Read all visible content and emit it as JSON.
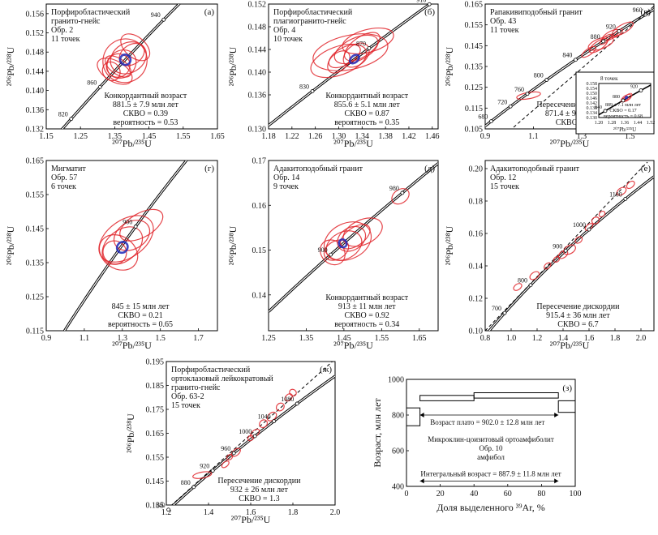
{
  "figure_axis": {
    "y_pb206_u238": "²⁰⁶Pb/²³⁸U",
    "x_pb207_u235": "²⁰⁷Pb/²³⁵U"
  },
  "chart_data": [
    {
      "id": "a",
      "type": "scatter",
      "letter": "(а)",
      "title_lines": [
        "Порфиробластический",
        "гранито-гнейс",
        "Обр. 2",
        "11 точек"
      ],
      "result_lines": [
        "Конкордантный возраст",
        "881.5 ± 7.9 млн лет",
        "СКВО = 0.39",
        "вероятность = 0.53"
      ],
      "xlim": [
        1.15,
        1.65
      ],
      "ylim": [
        0.132,
        0.158
      ],
      "xticks": [
        "1.15",
        "1.25",
        "1.35",
        "1.45",
        "1.55",
        "1.65"
      ],
      "yticks": [
        "0.132",
        "0.136",
        "0.140",
        "0.144",
        "0.148",
        "0.152",
        "0.156"
      ],
      "concordia_labels": [
        {
          "age": "820",
          "x": 1.223,
          "y": 0.1356
        },
        {
          "age": "860",
          "x": 1.307,
          "y": 0.1428
        },
        {
          "age": "940",
          "x": 1.493,
          "y": 0.157
        }
      ],
      "ellipses": [
        {
          "x": 1.38,
          "y": 0.1462,
          "rx": 0.13,
          "ry": 0.009,
          "rot": 35
        },
        {
          "x": 1.37,
          "y": 0.1455,
          "rx": 0.09,
          "ry": 0.0055,
          "rot": 40
        },
        {
          "x": 1.36,
          "y": 0.1452,
          "rx": 0.07,
          "ry": 0.0048,
          "rot": 35
        },
        {
          "x": 1.39,
          "y": 0.1468,
          "rx": 0.11,
          "ry": 0.0062,
          "rot": 30
        },
        {
          "x": 1.35,
          "y": 0.144,
          "rx": 0.06,
          "ry": 0.008,
          "rot": 60
        },
        {
          "x": 1.36,
          "y": 0.145,
          "rx": 0.045,
          "ry": 0.0062,
          "rot": 55
        },
        {
          "x": 1.4,
          "y": 0.1475,
          "rx": 0.08,
          "ry": 0.004,
          "rot": 35
        },
        {
          "x": 1.34,
          "y": 0.144,
          "rx": 0.05,
          "ry": 0.004,
          "rot": 30
        },
        {
          "x": 1.41,
          "y": 0.149,
          "rx": 0.06,
          "ry": 0.007,
          "rot": 50
        }
      ],
      "concordant": {
        "x": 1.381,
        "y": 0.1464,
        "rx": 0.03,
        "ry": 0.0022,
        "rot": 45
      },
      "line": {
        "kind": "concordia"
      }
    },
    {
      "id": "b",
      "type": "scatter",
      "letter": "(б)",
      "title_lines": [
        "Порфиробластический",
        "плагиогранито-гнейс",
        "Обр. 4",
        "10 точек"
      ],
      "result_lines": [
        "Конкордантный возраст",
        "855.6 ± 5.1 млн лет",
        "СКВО = 0.87",
        "вероятность = 0.35"
      ],
      "xlim": [
        1.18,
        1.47
      ],
      "ylim": [
        0.13,
        0.152
      ],
      "xticks": [
        "1.18",
        "1.22",
        "1.26",
        "1.30",
        "1.34",
        "1.38",
        "1.42",
        "1.46"
      ],
      "yticks": [
        "0.130",
        "0.136",
        "0.140",
        "0.144",
        "0.148",
        "0.152"
      ],
      "concordia_labels": [
        {
          "age": "830",
          "x": 1.255,
          "y": 0.137
        },
        {
          "age": "870",
          "x": 1.352,
          "y": 0.1448
        },
        {
          "age": "910",
          "x": 1.455,
          "y": 0.1515
        }
      ],
      "ellipses": [
        {
          "x": 1.32,
          "y": 0.1435,
          "rx": 0.13,
          "ry": 0.006,
          "rot": 12
        },
        {
          "x": 1.3,
          "y": 0.142,
          "rx": 0.1,
          "ry": 0.005,
          "rot": 20
        },
        {
          "x": 1.33,
          "y": 0.144,
          "rx": 0.08,
          "ry": 0.004,
          "rot": 25
        },
        {
          "x": 1.31,
          "y": 0.1428,
          "rx": 0.06,
          "ry": 0.003,
          "rot": 30
        },
        {
          "x": 1.34,
          "y": 0.1445,
          "rx": 0.07,
          "ry": 0.0034,
          "rot": 35
        },
        {
          "x": 1.33,
          "y": 0.143,
          "rx": 0.05,
          "ry": 0.0035,
          "rot": 40
        },
        {
          "x": 1.3,
          "y": 0.1418,
          "rx": 0.045,
          "ry": 0.003,
          "rot": 45
        },
        {
          "x": 1.35,
          "y": 0.1455,
          "rx": 0.09,
          "ry": 0.004,
          "rot": 15
        }
      ],
      "concordant": {
        "x": 1.327,
        "y": 0.1423,
        "rx": 0.018,
        "ry": 0.0012,
        "rot": 40
      },
      "line": {
        "kind": "concordia"
      }
    },
    {
      "id": "v",
      "type": "scatter",
      "letter": "(в)",
      "title_lines": [
        "Рапакивиподобный гранит",
        "Обр. 43",
        "11 точек"
      ],
      "result_lines": [
        "Пересечение дискордии",
        "871.4 ± 9.7 млн лет",
        "СКВО = 0.19"
      ],
      "xlim": [
        0.9,
        1.6
      ],
      "ylim": [
        0.105,
        0.165
      ],
      "xticks": [
        "0.9",
        "1.1",
        "1.3",
        "1.5"
      ],
      "yticks": [
        "0.105",
        "0.115",
        "0.125",
        "0.135",
        "0.145",
        "0.155",
        "0.165"
      ],
      "concordia_labels": [
        {
          "age": "680",
          "x": 0.925,
          "y": 0.111
        },
        {
          "age": "720",
          "x": 1.005,
          "y": 0.118
        },
        {
          "age": "760",
          "x": 1.075,
          "y": 0.125
        },
        {
          "age": "800",
          "x": 1.155,
          "y": 0.132
        },
        {
          "age": "840",
          "x": 1.275,
          "y": 0.142
        },
        {
          "age": "880",
          "x": 1.39,
          "y": 0.146
        },
        {
          "age": "920",
          "x": 1.455,
          "y": 0.1545
        },
        {
          "age": "960",
          "x": 1.565,
          "y": 0.1625
        }
      ],
      "ellipses": [
        {
          "x": 1.37,
          "y": 0.145,
          "rx": 0.09,
          "ry": 0.004,
          "rot": 35
        },
        {
          "x": 1.42,
          "y": 0.15,
          "rx": 0.08,
          "ry": 0.0035,
          "rot": 30
        },
        {
          "x": 1.47,
          "y": 0.153,
          "rx": 0.1,
          "ry": 0.004,
          "rot": 30
        },
        {
          "x": 1.33,
          "y": 0.142,
          "rx": 0.07,
          "ry": 0.003,
          "rot": 35
        },
        {
          "x": 1.4,
          "y": 0.148,
          "rx": 0.06,
          "ry": 0.0025,
          "rot": 40
        },
        {
          "x": 1.45,
          "y": 0.151,
          "rx": 0.05,
          "ry": 0.0022,
          "rot": 40
        },
        {
          "x": 1.38,
          "y": 0.146,
          "rx": 0.11,
          "ry": 0.005,
          "rot": 20
        },
        {
          "x": 1.08,
          "y": 0.121,
          "rx": 0.1,
          "ry": 0.003,
          "rot": 10
        }
      ],
      "line": {
        "kind": "discordia",
        "dashed": true,
        "from": [
          1.0,
          0.104
        ],
        "to": [
          1.62,
          0.166
        ]
      },
      "inset": {
        "title_lines": [
          "8 точек"
        ],
        "result_lines": [
          "889 ± 7.1 млн лет",
          "СКВО = 0.17",
          "вероятность = 0.68"
        ],
        "xlim": [
          1.2,
          1.52
        ],
        "ylim": [
          0.13,
          0.158
        ],
        "xticks": [
          "1.20",
          "1.28",
          "1.36",
          "1.44",
          "1.52"
        ],
        "yticks": [
          "0.130",
          "0.134",
          "0.138",
          "0.142",
          "0.146",
          "0.150",
          "0.154",
          "0.158"
        ],
        "xlabel": "²⁰⁷Pb/²³⁵U",
        "concordia_labels": [
          {
            "age": "840",
            "x": 1.24,
            "y": 0.139
          },
          {
            "age": "880",
            "x": 1.35,
            "y": 0.148
          },
          {
            "age": "920",
            "x": 1.46,
            "y": 0.154
          }
        ],
        "ellipses": [
          {
            "x": 1.37,
            "y": 0.146,
            "rx": 0.07,
            "ry": 0.0045,
            "rot": 30
          },
          {
            "x": 1.36,
            "y": 0.145,
            "rx": 0.05,
            "ry": 0.003,
            "rot": 35
          },
          {
            "x": 1.38,
            "y": 0.147,
            "rx": 0.06,
            "ry": 0.0035,
            "rot": 40
          }
        ],
        "concordant": {
          "x": 1.37,
          "y": 0.1465,
          "rx": 0.015,
          "ry": 0.0012,
          "rot": 40
        }
      }
    },
    {
      "id": "g",
      "type": "scatter",
      "letter": "(г)",
      "title_lines": [
        "Мигматит",
        "Обр. 57",
        "6 точек"
      ],
      "result_lines": [
        "845 ± 15 млн лет",
        "СКВО = 0.21",
        "вероятность = 0.65"
      ],
      "xlim": [
        0.9,
        1.8
      ],
      "ylim": [
        0.115,
        0.165
      ],
      "xticks": [
        "0.9",
        "1.1",
        "1.3",
        "1.5",
        "1.7"
      ],
      "yticks": [
        "0.115",
        "0.125",
        "0.135",
        "0.145",
        "0.155",
        "0.165"
      ],
      "concordia_labels": [
        {
          "age": "900",
          "x": 1.37,
          "y": 0.151
        }
      ],
      "ellipses": [
        {
          "x": 1.32,
          "y": 0.142,
          "rx": 0.32,
          "ry": 0.011,
          "rot": 35
        },
        {
          "x": 1.3,
          "y": 0.14,
          "rx": 0.24,
          "ry": 0.009,
          "rot": 40
        },
        {
          "x": 1.35,
          "y": 0.143,
          "rx": 0.2,
          "ry": 0.008,
          "rot": 30
        },
        {
          "x": 1.28,
          "y": 0.138,
          "rx": 0.17,
          "ry": 0.012,
          "rot": 55
        },
        {
          "x": 1.26,
          "y": 0.138,
          "rx": 0.12,
          "ry": 0.007,
          "rot": 50
        },
        {
          "x": 1.4,
          "y": 0.146,
          "rx": 0.25,
          "ry": 0.007,
          "rot": 30
        }
      ],
      "concordant": {
        "x": 1.3,
        "y": 0.1395,
        "rx": 0.06,
        "ry": 0.003,
        "rot": 50
      },
      "line": {
        "kind": "concordia"
      }
    },
    {
      "id": "d",
      "type": "scatter",
      "letter": "(д)",
      "title_lines": [
        "Адакитоподобный гранит",
        "Обр. 14",
        "9 точек"
      ],
      "result_lines": [
        "Конкордантный возраст",
        "913 ± 11 млн лет",
        "СКВО = 0.92",
        "вероятность = 0.34"
      ],
      "xlim": [
        1.25,
        1.7
      ],
      "ylim": [
        0.132,
        0.17
      ],
      "xticks": [
        "1.25",
        "1.35",
        "1.45",
        "1.55",
        "1.65"
      ],
      "yticks": [
        "0.14",
        "0.15",
        "0.16",
        "0.17"
      ],
      "concordia_labels": [
        {
          "age": "900",
          "x": 1.415,
          "y": 0.1505
        },
        {
          "age": "980",
          "x": 1.605,
          "y": 0.164
        }
      ],
      "ellipses": [
        {
          "x": 1.46,
          "y": 0.152,
          "rx": 0.13,
          "ry": 0.008,
          "rot": 25
        },
        {
          "x": 1.45,
          "y": 0.151,
          "rx": 0.1,
          "ry": 0.006,
          "rot": 28
        },
        {
          "x": 1.47,
          "y": 0.1525,
          "rx": 0.08,
          "ry": 0.005,
          "rot": 32
        },
        {
          "x": 1.43,
          "y": 0.15,
          "rx": 0.07,
          "ry": 0.004,
          "rot": 30
        },
        {
          "x": 1.5,
          "y": 0.154,
          "rx": 0.11,
          "ry": 0.0055,
          "rot": 25
        },
        {
          "x": 1.42,
          "y": 0.1495,
          "rx": 0.06,
          "ry": 0.006,
          "rot": 45
        },
        {
          "x": 1.48,
          "y": 0.153,
          "rx": 0.09,
          "ry": 0.004,
          "rot": 35
        },
        {
          "x": 1.6,
          "y": 0.162,
          "rx": 0.05,
          "ry": 0.003,
          "rot": 35
        }
      ],
      "concordant": {
        "x": 1.447,
        "y": 0.1515,
        "rx": 0.02,
        "ry": 0.0018,
        "rot": 35
      },
      "line": {
        "kind": "concordia"
      }
    },
    {
      "id": "e",
      "type": "scatter",
      "letter": "(е)",
      "title_lines": [
        "Адакитоподобный гранит",
        "Обр. 12",
        "15 точек"
      ],
      "result_lines": [
        "Пересечение дискордии",
        "915.4 ± 36 млн лет",
        "СКВО = 6.7"
      ],
      "xlim": [
        0.8,
        2.1
      ],
      "ylim": [
        0.1,
        0.205
      ],
      "xticks": [
        "0.8",
        "1.0",
        "1.2",
        "1.4",
        "1.6",
        "1.8",
        "2.0"
      ],
      "yticks": [
        "0.10",
        "0.12",
        "0.14",
        "0.16",
        "0.18",
        "0.20"
      ],
      "concordia_labels": [
        {
          "age": "700",
          "x": 0.95,
          "y": 0.113
        },
        {
          "age": "800",
          "x": 1.15,
          "y": 0.131
        },
        {
          "age": "900",
          "x": 1.42,
          "y": 0.149
        },
        {
          "age": "1000",
          "x": 1.6,
          "y": 0.168
        },
        {
          "age": "1100",
          "x": 1.88,
          "y": 0.186
        }
      ],
      "ellipses": [
        {
          "x": 1.05,
          "y": 0.127,
          "rx": 0.07,
          "ry": 0.0035,
          "rot": 35
        },
        {
          "x": 1.18,
          "y": 0.134,
          "rx": 0.08,
          "ry": 0.004,
          "rot": 35
        },
        {
          "x": 1.28,
          "y": 0.14,
          "rx": 0.06,
          "ry": 0.003,
          "rot": 40
        },
        {
          "x": 1.4,
          "y": 0.147,
          "rx": 0.08,
          "ry": 0.004,
          "rot": 35
        },
        {
          "x": 1.45,
          "y": 0.15,
          "rx": 0.1,
          "ry": 0.005,
          "rot": 30
        },
        {
          "x": 1.52,
          "y": 0.156,
          "rx": 0.06,
          "ry": 0.0035,
          "rot": 40
        },
        {
          "x": 1.6,
          "y": 0.164,
          "rx": 0.07,
          "ry": 0.003,
          "rot": 40
        },
        {
          "x": 1.65,
          "y": 0.168,
          "rx": 0.06,
          "ry": 0.004,
          "rot": 35
        },
        {
          "x": 1.7,
          "y": 0.172,
          "rx": 0.05,
          "ry": 0.003,
          "rot": 40
        },
        {
          "x": 1.85,
          "y": 0.186,
          "rx": 0.08,
          "ry": 0.004,
          "rot": 35
        },
        {
          "x": 1.92,
          "y": 0.19,
          "rx": 0.07,
          "ry": 0.0035,
          "rot": 40
        },
        {
          "x": 1.35,
          "y": 0.144,
          "rx": 0.05,
          "ry": 0.003,
          "rot": 35
        }
      ],
      "line": {
        "kind": "discordia",
        "dashed": true,
        "from": [
          0.8,
          0.1
        ],
        "to": [
          2.05,
          0.204
        ]
      }
    },
    {
      "id": "zh",
      "type": "scatter",
      "letter": "(ж)",
      "title_lines": [
        "Порфиробластический",
        "ортоклазовый лейкократовый",
        "гранито-гнейс",
        "Обр. 63-2",
        "15 точек"
      ],
      "result_lines": [
        "Пересечение дискордии",
        "932 ± 26 млн лет",
        "СКВО = 1.3"
      ],
      "xlim": [
        1.2,
        2.0
      ],
      "ylim": [
        0.135,
        0.195
      ],
      "xticks": [
        "1.2",
        "1.4",
        "1.6",
        "1.8",
        "2.0"
      ],
      "yticks": [
        "0.135",
        "0.145",
        "0.155",
        "0.165",
        "0.175",
        "0.185",
        "0.195"
      ],
      "concordia_labels": [
        {
          "age": "840",
          "x": 1.21,
          "y": 0.1385
        },
        {
          "age": "880",
          "x": 1.33,
          "y": 0.146
        },
        {
          "age": "920",
          "x": 1.42,
          "y": 0.153
        },
        {
          "age": "960",
          "x": 1.52,
          "y": 0.1605
        },
        {
          "age": "1000",
          "x": 1.62,
          "y": 0.167
        },
        {
          "age": "1040",
          "x": 1.71,
          "y": 0.1745
        },
        {
          "age": "1080",
          "x": 1.82,
          "y": 0.1825
        }
      ],
      "ellipses": [
        {
          "x": 1.37,
          "y": 0.1475,
          "rx": 0.09,
          "ry": 0.0025,
          "rot": 10
        },
        {
          "x": 1.48,
          "y": 0.152,
          "rx": 0.04,
          "ry": 0.002,
          "rot": 40
        },
        {
          "x": 1.53,
          "y": 0.157,
          "rx": 0.05,
          "ry": 0.0025,
          "rot": 40
        },
        {
          "x": 1.62,
          "y": 0.165,
          "rx": 0.05,
          "ry": 0.0025,
          "rot": 40
        },
        {
          "x": 1.66,
          "y": 0.169,
          "rx": 0.04,
          "ry": 0.003,
          "rot": 45
        },
        {
          "x": 1.7,
          "y": 0.172,
          "rx": 0.05,
          "ry": 0.003,
          "rot": 40
        },
        {
          "x": 1.74,
          "y": 0.176,
          "rx": 0.04,
          "ry": 0.003,
          "rot": 45
        },
        {
          "x": 1.78,
          "y": 0.18,
          "rx": 0.04,
          "ry": 0.0025,
          "rot": 45
        },
        {
          "x": 1.8,
          "y": 0.182,
          "rx": 0.03,
          "ry": 0.003,
          "rot": 50
        },
        {
          "x": 1.6,
          "y": 0.163,
          "rx": 0.03,
          "ry": 0.002,
          "rot": 40
        },
        {
          "x": 1.5,
          "y": 0.155,
          "rx": 0.03,
          "ry": 0.002,
          "rot": 40
        }
      ],
      "line": {
        "kind": "discordia",
        "dashed": true,
        "from": [
          1.2,
          0.133
        ],
        "to": [
          2.0,
          0.196
        ]
      }
    },
    {
      "id": "z",
      "type": "line",
      "letter": "(з)",
      "xlabel": "Доля выделенного ³⁹Ar, %",
      "ylabel": "Возраст, млн лет",
      "xlim": [
        0,
        100
      ],
      "ylim": [
        400,
        1000
      ],
      "xticks": [
        "0",
        "20",
        "40",
        "60",
        "80",
        "100"
      ],
      "yticks": [
        "400",
        "600",
        "800",
        "1000"
      ],
      "plateau_label": "Возраст плато = 902.0 ± 12.8 млн лет",
      "sample_lines": [
        "Микроклин-цоизитовый ортоамфиболит",
        "Обр. 10",
        "амфибол"
      ],
      "integral_label": "Интегральный возраст = 887.9 ± 11.8 млн лет",
      "plateau_range": [
        8,
        90
      ],
      "spectrum": [
        {
          "x0": 0,
          "x1": 8,
          "lo": 740,
          "hi": 840
        },
        {
          "x0": 8,
          "x1": 40,
          "lo": 880,
          "hi": 910
        },
        {
          "x0": 40,
          "x1": 90,
          "lo": 895,
          "hi": 925
        },
        {
          "x0": 90,
          "x1": 100,
          "lo": 815,
          "hi": 880
        }
      ]
    }
  ]
}
